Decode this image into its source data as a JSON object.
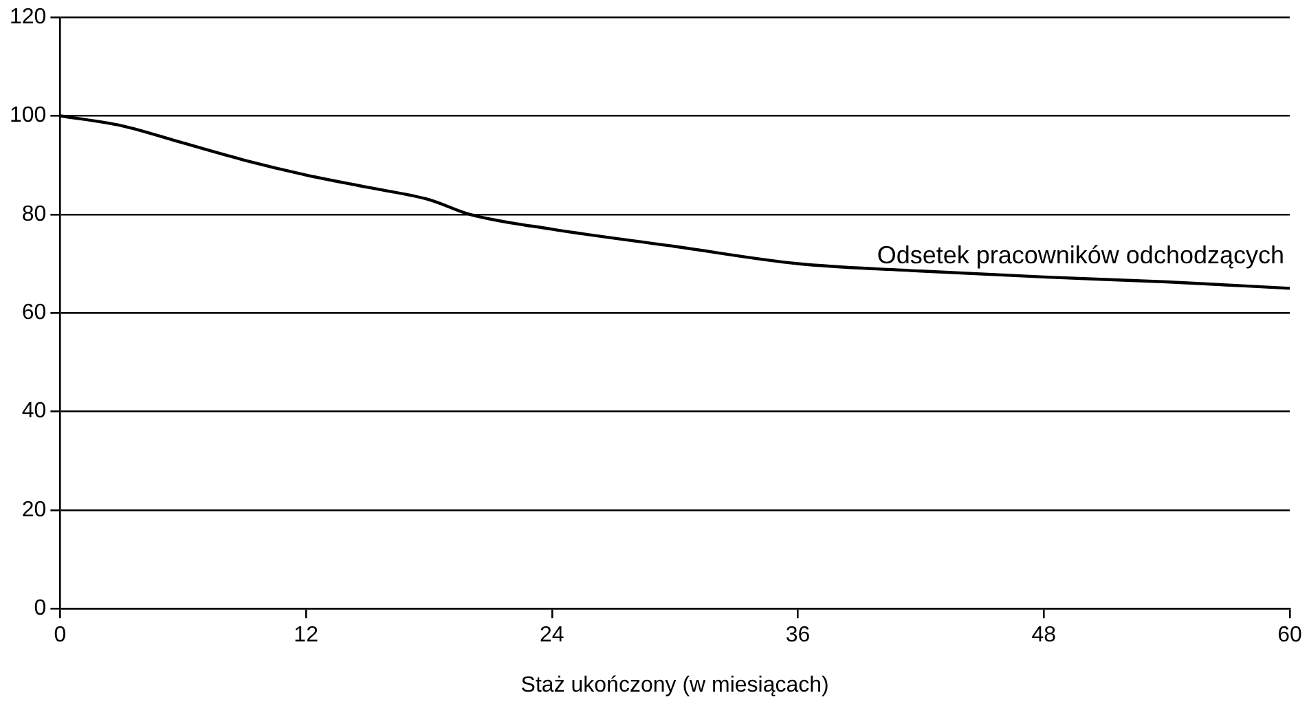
{
  "chart_data": {
    "type": "line",
    "xlabel": "Staż ukończony (w miesiącach)",
    "x": [
      0,
      3,
      6,
      9,
      12,
      15,
      18,
      20,
      24,
      30,
      36,
      42,
      48,
      54,
      60
    ],
    "series": [
      {
        "name": "Odsetek pracowników odchodzących",
        "color": "#000000",
        "values": [
          100,
          98,
          94.5,
          91,
          88,
          85.5,
          83,
          80,
          77,
          73.5,
          70,
          68.5,
          67.3,
          66.3,
          65
        ]
      }
    ],
    "xlim": [
      0,
      60
    ],
    "xticks": [
      0,
      12,
      24,
      36,
      48,
      60
    ],
    "ylim": [
      0,
      120
    ],
    "yticks": [
      0,
      20,
      40,
      60,
      80,
      100,
      120
    ],
    "grid": "y",
    "legend": false,
    "marker": "none",
    "line_style": "solid"
  }
}
